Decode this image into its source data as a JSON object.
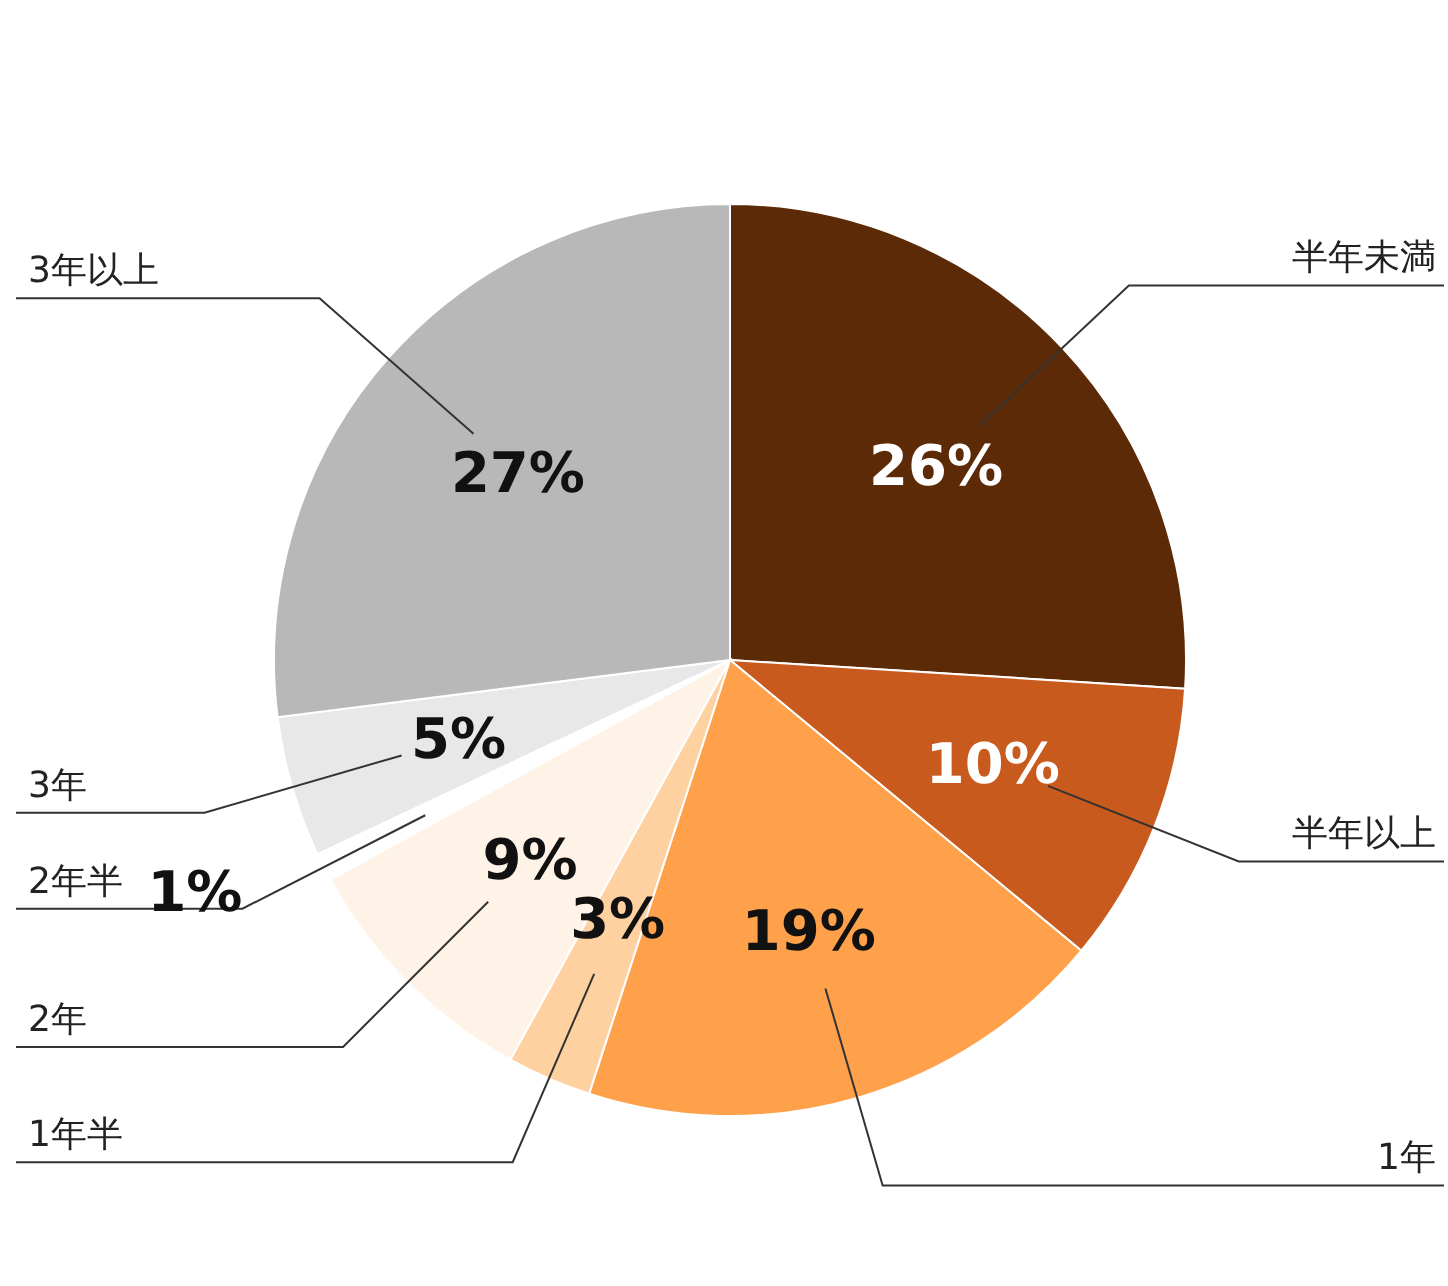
{
  "chart_data": {
    "type": "pie",
    "categories": [
      "半年未満",
      "半年以上",
      "1年",
      "1年半",
      "2年",
      "2年半",
      "3年",
      "3年以上"
    ],
    "values": [
      26,
      10,
      19,
      3,
      9,
      1,
      5,
      27
    ],
    "colors": [
      "#5c2a06",
      "#c85a1e",
      "#ffa04a",
      "#ffd0a0",
      "#fff2e6",
      "#ffffff",
      "#e8e8e8",
      "#b8b8b8"
    ],
    "value_labels": [
      "26%",
      "10%",
      "19%",
      "3%",
      "9%",
      "1%",
      "5%",
      "27%"
    ]
  }
}
